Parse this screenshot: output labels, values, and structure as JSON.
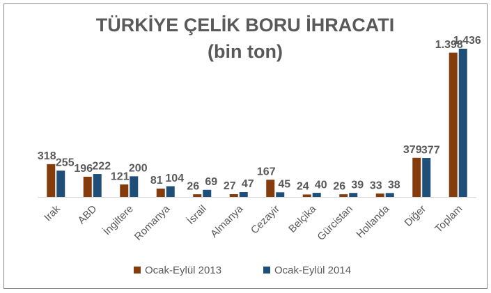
{
  "chart_data": {
    "type": "bar",
    "title": "TÜRKİYE ÇELİK BORU İHRACATI",
    "subtitle": "(bin ton)",
    "categories": [
      "Irak",
      "ABD",
      "İngiltere",
      "Romanya",
      "İsrail",
      "Almanya",
      "Cezayir",
      "Belçika",
      "Gürcistan",
      "Hollanda",
      "Diğer",
      "Toplam"
    ],
    "series": [
      {
        "name": "Ocak-Eylül 2013",
        "color": "#843c0c",
        "values": [
          318,
          196,
          121,
          81,
          26,
          27,
          167,
          24,
          26,
          33,
          379,
          1398
        ],
        "value_labels": [
          "318",
          "196",
          "121",
          "81",
          "26",
          "27",
          "167",
          "24",
          "26",
          "33",
          "379",
          "1.398"
        ]
      },
      {
        "name": "Ocak-Eylül 2014",
        "color": "#1f4e79",
        "values": [
          255,
          222,
          200,
          104,
          69,
          47,
          45,
          40,
          39,
          38,
          377,
          1436
        ],
        "value_labels": [
          "255",
          "222",
          "200",
          "104",
          "69",
          "47",
          "45",
          "40",
          "39",
          "38",
          "377",
          "1.436"
        ]
      }
    ],
    "legend": "bottom"
  }
}
